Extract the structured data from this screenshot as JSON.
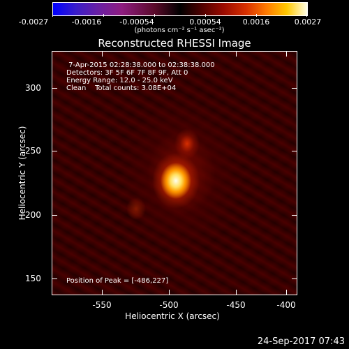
{
  "colorbar": {
    "tick_labels": [
      "-0.0027",
      "-0.0016",
      "-0.00054",
      "0.00054",
      "0.0016",
      "0.0027"
    ],
    "units": "(photons cm⁻² s⁻¹ asec⁻²)",
    "colors": [
      "#0000ff",
      "#8e1c80",
      "#000000",
      "#9a0a00",
      "#ff7a00",
      "#ffffe6"
    ]
  },
  "plot": {
    "title": "Reconstructed RHESSI Image",
    "info_lines": [
      " 7-Apr-2015 02:28:38.000 to 02:38:38.000",
      "Detectors: 3F 5F 6F 7F 8F 9F, Att 0",
      "Energy Range: 12.0 - 25.0 keV",
      "Clean    Total counts: 3.08E+04"
    ],
    "peak_label": "Position of Peak = [-486,227]",
    "x_axis_title": "Heliocentric X (arcsec)",
    "y_axis_title": "Heliocentric Y (arcsec)",
    "x_tick_labels": [
      "-550",
      "-500",
      "-450",
      "-400"
    ],
    "y_tick_labels": [
      "300",
      "250",
      "200",
      "150"
    ]
  },
  "footer": {
    "timestamp": "24-Sep-2017 07:43"
  }
}
